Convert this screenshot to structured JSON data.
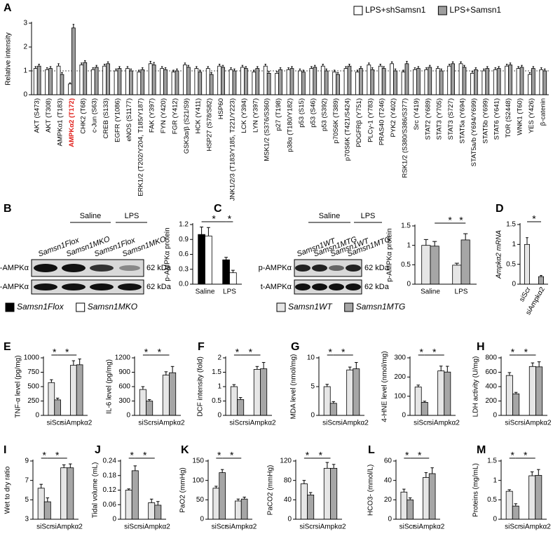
{
  "chart_data": [
    {
      "type": "bar",
      "panel": "A",
      "ylabel": "Relative intensity",
      "categories": [
        "AKT (S473)",
        "AKT (T308)",
        "AMPKα1 (T183)",
        "AMPKα2 (T172)",
        "CHK2 (T68)",
        "c-Jun (S63)",
        "CREB (S133)",
        "EGFR (Y1086)",
        "eNOS (S1177)",
        "ERK1/2 (T202/Y204, T185/Y187)",
        "FAK (Y397)",
        "FYN (Y420)",
        "FGR (Y412)",
        "GSK3α/β (S21/S9)",
        "HCK (Y411)",
        "HSP27 (S78/S82)",
        "HSP60",
        "JNK1/2/3 (T183/Y185, T221/Y223)",
        "LCK (Y394)",
        "LYN (Y397)",
        "MSK1/2 (S376/S360)",
        "p27 (T198)",
        "p38α (T180/Y182)",
        "p53 (S15)",
        "p53 (S46)",
        "p53 (S392)",
        "p70S6K (T389)",
        "p70S6K (T421/S424)",
        "PDGFRβ (Y751)",
        "PLCγ-1 (Y783)",
        "PRAS40 (T246)",
        "PYK2 (Y402)",
        "RSK1/2 (S380/S386/S377)",
        "Src (Y419)",
        "STAT2 (Y689)",
        "STAT3 (Y705)",
        "STAT3 (S727)",
        "STAT5a (Y694)",
        "STAT5a/b (Y694/Y699)",
        "STAT5b (Y699)",
        "STAT6 (Y641)",
        "TOR (S2448)",
        "WNK1 (T60)",
        "YES (Y426)",
        "β-catenin"
      ],
      "series": [
        {
          "name": "LPS+shSamsn1",
          "color": "#ffffff",
          "values": [
            1.1,
            1.05,
            1.2,
            0.45,
            1.25,
            1.05,
            1.2,
            1.0,
            1.1,
            0.95,
            1.3,
            1.1,
            0.95,
            1.25,
            1.1,
            1.1,
            1.2,
            1.05,
            1.15,
            0.95,
            1.2,
            0.9,
            1.05,
            1.0,
            1.1,
            1.2,
            0.95,
            1.1,
            0.95,
            1.25,
            1.2,
            1.3,
            0.95,
            1.05,
            1.05,
            1.1,
            1.2,
            1.3,
            0.9,
            1.0,
            1.05,
            1.2,
            1.1,
            0.85,
            1.05
          ],
          "errors": [
            0.08,
            0.08,
            0.1,
            0.05,
            0.08,
            0.08,
            0.08,
            0.08,
            0.08,
            0.08,
            0.1,
            0.08,
            0.08,
            0.08,
            0.08,
            0.08,
            0.08,
            0.08,
            0.08,
            0.08,
            0.08,
            0.08,
            0.08,
            0.08,
            0.08,
            0.08,
            0.08,
            0.08,
            0.08,
            0.08,
            0.08,
            0.08,
            0.08,
            0.08,
            0.08,
            0.08,
            0.08,
            0.08,
            0.08,
            0.08,
            0.08,
            0.08,
            0.08,
            0.08,
            0.08
          ]
        },
        {
          "name": "LPS+Samsn1",
          "color": "#9e9e9e",
          "values": [
            1.2,
            1.1,
            0.85,
            2.8,
            1.35,
            1.15,
            1.3,
            1.1,
            1.0,
            1.05,
            1.25,
            1.05,
            1.0,
            1.15,
            0.95,
            0.85,
            1.15,
            1.0,
            1.1,
            1.1,
            0.9,
            1.05,
            1.1,
            0.95,
            1.15,
            1.0,
            0.85,
            1.2,
            1.1,
            1.05,
            1.1,
            1.0,
            1.3,
            1.1,
            1.15,
            1.0,
            1.3,
            1.15,
            1.05,
            1.1,
            1.1,
            1.25,
            1.15,
            1.1,
            1.0
          ],
          "errors": [
            0.08,
            0.08,
            0.08,
            0.15,
            0.08,
            0.08,
            0.08,
            0.08,
            0.08,
            0.08,
            0.1,
            0.08,
            0.08,
            0.08,
            0.08,
            0.08,
            0.08,
            0.08,
            0.08,
            0.08,
            0.08,
            0.08,
            0.08,
            0.08,
            0.08,
            0.08,
            0.08,
            0.08,
            0.08,
            0.08,
            0.08,
            0.08,
            0.1,
            0.08,
            0.08,
            0.08,
            0.08,
            0.08,
            0.08,
            0.08,
            0.08,
            0.08,
            0.08,
            0.08,
            0.08
          ]
        }
      ],
      "ylim": [
        0,
        3
      ],
      "yticks": [
        0,
        1,
        2,
        3
      ],
      "reference_line": 1,
      "legend": "upper right",
      "highlight": {
        "index": 3,
        "color": "#e0201b"
      }
    },
    {
      "type": "bar",
      "panel": "B",
      "ylabel": "p-AMPKα protein",
      "categories": [
        "Saline",
        "LPS"
      ],
      "series": [
        {
          "name": "Samsn1Flox",
          "color": "#000000",
          "values": [
            1.0,
            0.49
          ],
          "errors": [
            0.15,
            0.05
          ]
        },
        {
          "name": "Samsn1MKO",
          "color": "#ffffff",
          "values": [
            0.97,
            0.23
          ],
          "errors": [
            0.17,
            0.05
          ]
        }
      ],
      "ylim": [
        0,
        1.2
      ],
      "yticks": [
        {
          "value": 0,
          "label": "0.0"
        },
        0.3,
        0.6,
        0.9,
        1.2
      ],
      "annotations": [
        "*",
        "*"
      ],
      "legend": "below blot"
    },
    {
      "type": "bar",
      "panel": "C",
      "ylabel": "p-AMPKα protein",
      "categories": [
        "Saline",
        "LPS"
      ],
      "series": [
        {
          "name": "Samsn1WT",
          "color": "#e6e6e6",
          "values": [
            1.0,
            0.49
          ],
          "errors": [
            0.15,
            0.05
          ]
        },
        {
          "name": "Samsn1MTG",
          "color": "#a6a6a6",
          "values": [
            0.98,
            1.14
          ],
          "errors": [
            0.12,
            0.16
          ]
        }
      ],
      "ylim": [
        0,
        1.5
      ],
      "yticks": [
        0,
        0.5,
        1,
        1.5
      ],
      "annotations": [
        "*",
        "*"
      ],
      "legend": "below blot"
    },
    {
      "type": "bar",
      "panel": "D",
      "ylabel": "Ampkα2 mRNA",
      "categories": [
        "siScr",
        "siAmpkα2"
      ],
      "values": [
        1.0,
        0.19
      ],
      "errors": [
        0.17,
        0.03
      ],
      "colors": [
        "#e6e6e6",
        "#a6a6a6"
      ],
      "ylim": [
        0,
        1.5
      ],
      "yticks": [
        0,
        0.5,
        1,
        1.5
      ],
      "annotations": [
        "*"
      ]
    },
    {
      "type": "bar",
      "panel": "E",
      "ylabel": "TNF-α level (pg/mg)",
      "categories": [
        "siScr",
        "siAmpkα2"
      ],
      "series": [
        {
          "color": "#e6e6e6",
          "values": [
            570,
            870
          ],
          "errors": [
            50,
            80
          ]
        },
        {
          "color": "#a6a6a6",
          "values": [
            270,
            880
          ],
          "errors": [
            30,
            100
          ]
        }
      ],
      "ylim": [
        0,
        1000
      ],
      "yticks": [
        0,
        250,
        500,
        750,
        1000
      ],
      "annotations": [
        "*",
        "*"
      ]
    },
    {
      "type": "bar",
      "ylabel": "IL-6 level (pg/mg)",
      "categories": [
        "siScr",
        "siAmpkα2"
      ],
      "series": [
        {
          "color": "#e6e6e6",
          "values": [
            540,
            840
          ],
          "errors": [
            60,
            70
          ]
        },
        {
          "color": "#a6a6a6",
          "values": [
            300,
            890
          ],
          "errors": [
            30,
            130
          ]
        }
      ],
      "ylim": [
        0,
        1200
      ],
      "yticks": [
        0,
        300,
        600,
        900,
        1200
      ],
      "annotations": [
        "*",
        "*"
      ]
    },
    {
      "type": "bar",
      "panel": "F",
      "ylabel": "DCF intensity (fold)",
      "categories": [
        "siScr",
        "siAmpkα2"
      ],
      "series": [
        {
          "color": "#e6e6e6",
          "values": [
            1.0,
            1.6
          ],
          "errors": [
            0.07,
            0.1
          ]
        },
        {
          "color": "#a6a6a6",
          "values": [
            0.55,
            1.62
          ],
          "errors": [
            0.07,
            0.22
          ]
        }
      ],
      "ylim": [
        0,
        2
      ],
      "yticks": [
        0,
        0.5,
        1,
        1.5,
        2
      ],
      "annotations": [
        "*",
        "*"
      ]
    },
    {
      "type": "bar",
      "panel": "G",
      "ylabel": "MDA level (nmol/mg)",
      "categories": [
        "siScr",
        "siAmpkα2"
      ],
      "series": [
        {
          "color": "#e6e6e6",
          "values": [
            5.0,
            7.9
          ],
          "errors": [
            0.4,
            0.5
          ]
        },
        {
          "color": "#a6a6a6",
          "values": [
            2.1,
            8.1
          ],
          "errors": [
            0.3,
            1.1
          ]
        }
      ],
      "ylim": [
        0,
        10
      ],
      "yticks": [
        0,
        5,
        10
      ],
      "annotations": [
        "*",
        "*"
      ]
    },
    {
      "type": "bar",
      "ylabel": "4-HNE level (nmol/mg)",
      "categories": [
        "siScr",
        "siAmpkα2"
      ],
      "series": [
        {
          "color": "#e6e6e6",
          "values": [
            148,
            232
          ],
          "errors": [
            10,
            25
          ]
        },
        {
          "color": "#a6a6a6",
          "values": [
            68,
            226
          ],
          "errors": [
            6,
            30
          ]
        }
      ],
      "ylim": [
        0,
        300
      ],
      "yticks": [
        0,
        100,
        200,
        300
      ],
      "annotations": [
        "*",
        "*"
      ]
    },
    {
      "type": "bar",
      "panel": "H",
      "ylabel": "LDH activity (U/mg)",
      "categories": [
        "siScr",
        "siAmpkα2"
      ],
      "series": [
        {
          "color": "#e6e6e6",
          "values": [
            555,
            680
          ],
          "errors": [
            40,
            50
          ]
        },
        {
          "color": "#a6a6a6",
          "values": [
            300,
            675
          ],
          "errors": [
            20,
            70
          ]
        }
      ],
      "ylim": [
        0,
        800
      ],
      "yticks": [
        0,
        200,
        400,
        600,
        800
      ],
      "annotations": [
        "*",
        "*"
      ]
    },
    {
      "type": "bar",
      "panel": "I",
      "ylabel": "Wet to dry ratio",
      "categories": [
        "siScr",
        "siAmpkα2"
      ],
      "series": [
        {
          "color": "#e6e6e6",
          "values": [
            6.2,
            8.3
          ],
          "errors": [
            0.4,
            0.3
          ]
        },
        {
          "color": "#a6a6a6",
          "values": [
            4.8,
            8.3
          ],
          "errors": [
            0.4,
            0.4
          ]
        }
      ],
      "ylim": [
        3,
        9
      ],
      "yticks": [
        3,
        5,
        7,
        9
      ],
      "annotations": [
        "*",
        "*"
      ]
    },
    {
      "type": "bar",
      "panel": "J",
      "ylabel": "Tidal volume (mL)",
      "categories": [
        "siScr",
        "siAmpkα2"
      ],
      "series": [
        {
          "color": "#e6e6e6",
          "values": [
            0.12,
            0.068
          ],
          "errors": [
            0.005,
            0.015
          ]
        },
        {
          "color": "#a6a6a6",
          "values": [
            0.2,
            0.058
          ],
          "errors": [
            0.02,
            0.015
          ]
        }
      ],
      "ylim": [
        0,
        0.24
      ],
      "yticks": [
        0,
        0.06,
        0.12,
        0.18,
        0.24
      ],
      "annotations": [
        "*",
        "*"
      ]
    },
    {
      "type": "bar",
      "panel": "K",
      "ylabel": "PaO2 (mmHg)",
      "categories": [
        "siScr",
        "siAmpkα2"
      ],
      "series": [
        {
          "color": "#e6e6e6",
          "values": [
            80,
            47
          ],
          "errors": [
            5,
            5
          ]
        },
        {
          "color": "#a6a6a6",
          "values": [
            120,
            52
          ],
          "errors": [
            8,
            5
          ]
        }
      ],
      "ylim": [
        0,
        150
      ],
      "yticks": [
        0,
        50,
        100,
        150
      ],
      "annotations": [
        "*",
        "*"
      ]
    },
    {
      "type": "bar",
      "ylabel": "PaCO2 (mmHg)",
      "categories": [
        "siScr",
        "siAmpkα2"
      ],
      "series": [
        {
          "color": "#e6e6e6",
          "values": [
            73,
            105
          ],
          "errors": [
            7,
            12
          ]
        },
        {
          "color": "#a6a6a6",
          "values": [
            50,
            105
          ],
          "errors": [
            5,
            8
          ]
        }
      ],
      "ylim": [
        0,
        120
      ],
      "yticks": [
        0,
        40,
        80,
        120
      ],
      "annotations": [
        "*",
        "*"
      ]
    },
    {
      "type": "bar",
      "panel": "L",
      "ylabel": "HCO3- (mmol/L)",
      "categories": [
        "siScr",
        "siAmpkα2"
      ],
      "series": [
        {
          "color": "#e6e6e6",
          "values": [
            28,
            43
          ],
          "errors": [
            3,
            5
          ]
        },
        {
          "color": "#a6a6a6",
          "values": [
            20,
            47
          ],
          "errors": [
            2,
            6
          ]
        }
      ],
      "ylim": [
        0,
        60
      ],
      "yticks": [
        0,
        20,
        40,
        60
      ],
      "annotations": [
        "*",
        "*"
      ]
    },
    {
      "type": "bar",
      "panel": "M",
      "ylabel": "Proteins (mg/mL)",
      "categories": [
        "siScr",
        "siAmpkα2"
      ],
      "series": [
        {
          "color": "#e6e6e6",
          "values": [
            0.72,
            1.12
          ],
          "errors": [
            0.04,
            0.1
          ]
        },
        {
          "color": "#a6a6a6",
          "values": [
            0.34,
            1.13
          ],
          "errors": [
            0.06,
            0.15
          ]
        }
      ],
      "ylim": [
        0,
        1.5
      ],
      "yticks": [
        0,
        0.5,
        1,
        1.5
      ],
      "annotations": [
        "*",
        "*"
      ]
    }
  ],
  "blots": [
    {
      "groups": [
        "Saline",
        "LPS"
      ],
      "lanes": [
        "Samsn1Flox",
        "Samsn1MKO",
        "Samsn1Flox",
        "Samsn1MKO"
      ],
      "rows": [
        "p-AMPKα",
        "t-AMPKα"
      ],
      "sizes": [
        "62 kDa",
        "62 kDa"
      ]
    },
    {
      "groups": [
        "Saline",
        "LPS"
      ],
      "lanes": [
        "Samsn1WT",
        "Samsn1MTG",
        "Samsn1WT",
        "Samsn1MTG"
      ],
      "rows": [
        "p-AMPKα",
        "t-AMPKα"
      ],
      "sizes": [
        "62 kDa",
        "62 kDa"
      ]
    }
  ]
}
